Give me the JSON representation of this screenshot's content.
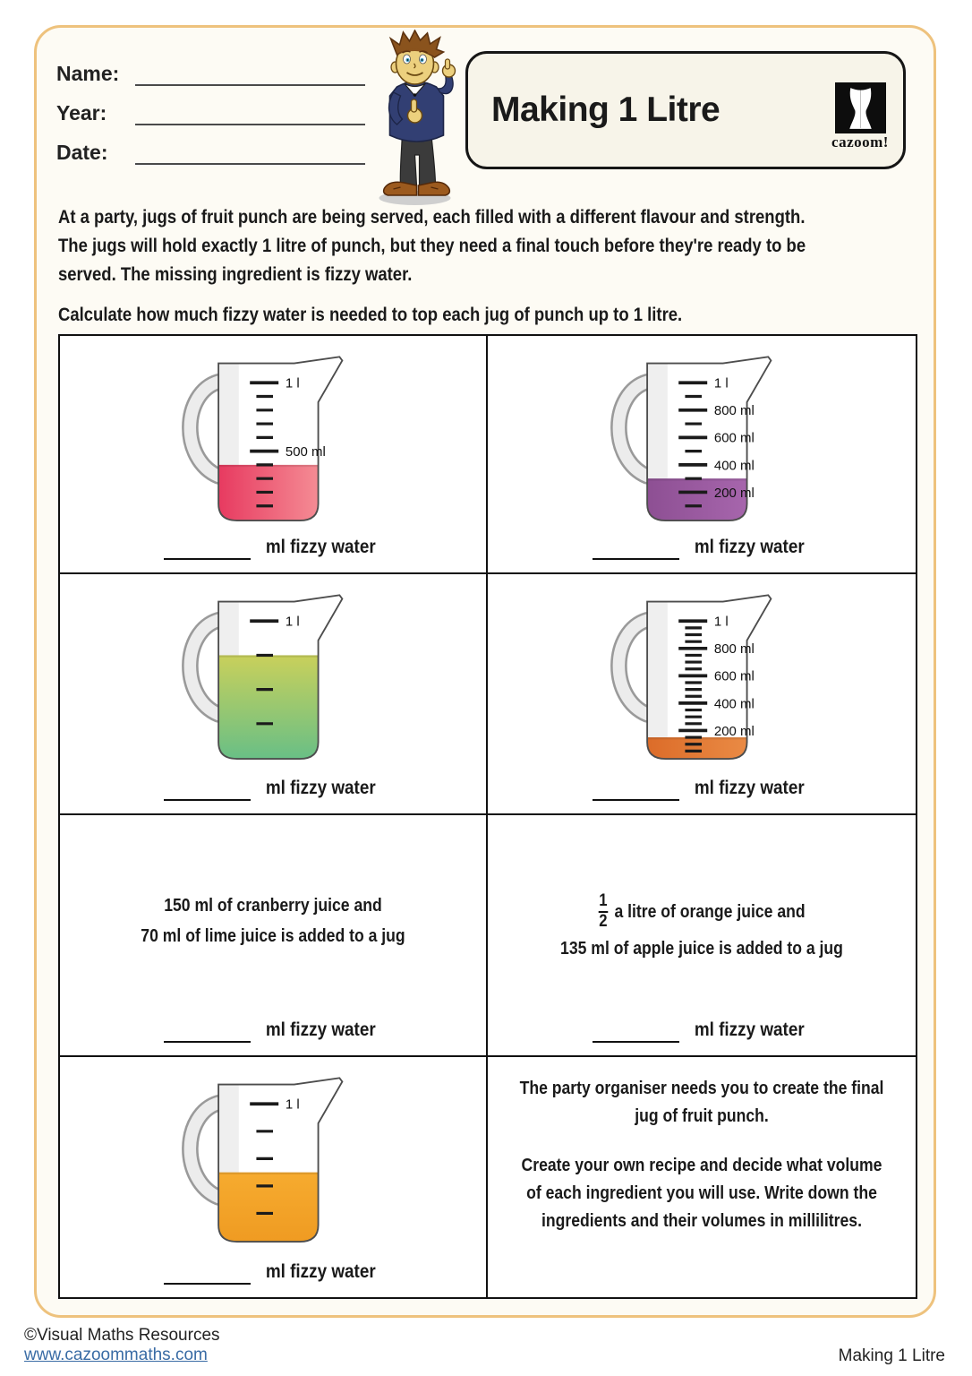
{
  "header": {
    "name_label": "Name:",
    "year_label": "Year:",
    "date_label": "Date:"
  },
  "title_box": {
    "title": "Making 1 Litre",
    "brand": "cazoom!"
  },
  "intro": {
    "paragraph1_lines": [
      "At a party, jugs of fruit punch are being served, each filled with a different flavour and strength.",
      "The jugs will hold exactly 1 litre of punch, but they need a final touch before they're ready to be",
      "served. The missing ingredient is fizzy water."
    ],
    "paragraph2": "Calculate how much fizzy water is needed to top each jug of punch up to 1 litre."
  },
  "answer_label": "ml fizzy water",
  "problems": [
    {
      "kind": "jug",
      "jug": {
        "fill_ml": 400,
        "capacity_ml": 1000,
        "minor_step_ml": 100,
        "major_step_ml": 500,
        "labels": [
          {
            "ml": 1000,
            "text": "1 l"
          },
          {
            "ml": 500,
            "text": "500 ml"
          }
        ],
        "liquid": {
          "name": "pink punch",
          "direction": "horizontal",
          "colors": [
            "#e73a60",
            "#f58d95"
          ]
        }
      }
    },
    {
      "kind": "jug",
      "jug": {
        "fill_ml": 300,
        "capacity_ml": 1000,
        "minor_step_ml": 100,
        "major_step_ml": 200,
        "labels": [
          {
            "ml": 1000,
            "text": "1 l"
          },
          {
            "ml": 800,
            "text": "800 ml"
          },
          {
            "ml": 600,
            "text": "600 ml"
          },
          {
            "ml": 400,
            "text": "400 ml"
          },
          {
            "ml": 200,
            "text": "200 ml"
          }
        ],
        "liquid": {
          "name": "purple punch",
          "direction": "horizontal",
          "colors": [
            "#8d4f93",
            "#a766ad"
          ]
        }
      }
    },
    {
      "kind": "jug",
      "jug": {
        "fill_ml": 750,
        "capacity_ml": 1000,
        "minor_step_ml": 250,
        "major_step_ml": 1000,
        "labels": [
          {
            "ml": 1000,
            "text": "1 l"
          }
        ],
        "liquid": {
          "name": "green punch",
          "direction": "vertical",
          "colors": [
            "#c9d05b",
            "#68bf86"
          ]
        }
      }
    },
    {
      "kind": "jug",
      "jug": {
        "fill_ml": 150,
        "capacity_ml": 1000,
        "minor_step_ml": 50,
        "major_step_ml": 200,
        "labels": [
          {
            "ml": 1000,
            "text": "1 l"
          },
          {
            "ml": 800,
            "text": "800 ml"
          },
          {
            "ml": 600,
            "text": "600 ml"
          },
          {
            "ml": 400,
            "text": "400 ml"
          },
          {
            "ml": 200,
            "text": "200 ml"
          }
        ],
        "liquid": {
          "name": "orange punch",
          "direction": "horizontal",
          "colors": [
            "#dc6c29",
            "#ea8b45"
          ]
        }
      }
    },
    {
      "kind": "text",
      "lines": [
        "150 ml of cranberry juice and",
        "70 ml of lime juice is added to a jug"
      ]
    },
    {
      "kind": "text",
      "fraction": {
        "numerator": "1",
        "denominator": "2"
      },
      "line1_after_fraction": "a litre of orange juice and",
      "lines": [
        "135 ml of apple juice is added to a jug"
      ]
    },
    {
      "kind": "jug",
      "jug": {
        "fill_ml": 500,
        "capacity_ml": 1000,
        "minor_step_ml": 200,
        "major_step_ml": 1000,
        "labels": [
          {
            "ml": 1000,
            "text": "1 l"
          }
        ],
        "liquid": {
          "name": "amber punch",
          "direction": "vertical",
          "colors": [
            "#f6ab2f",
            "#ef9b22"
          ]
        }
      }
    },
    {
      "kind": "instructions",
      "paragraph1_lines": [
        "The party organiser needs you to create the final",
        "jug of fruit punch."
      ],
      "paragraph2_lines": [
        "Create your own recipe and decide what volume",
        "of each ingredient you will use. Write down the",
        "ingredients and their volumes in millilitres."
      ]
    }
  ],
  "footer": {
    "copyright": "©Visual Maths Resources",
    "website": "www.cazoommaths.com",
    "worksheet_title": "Making 1 Litre"
  },
  "colors": {
    "page_border": "#eec27d",
    "table_border": "#111111",
    "link_blue": "#3a6ca5",
    "title_box_bg": "#f7f4e9"
  }
}
